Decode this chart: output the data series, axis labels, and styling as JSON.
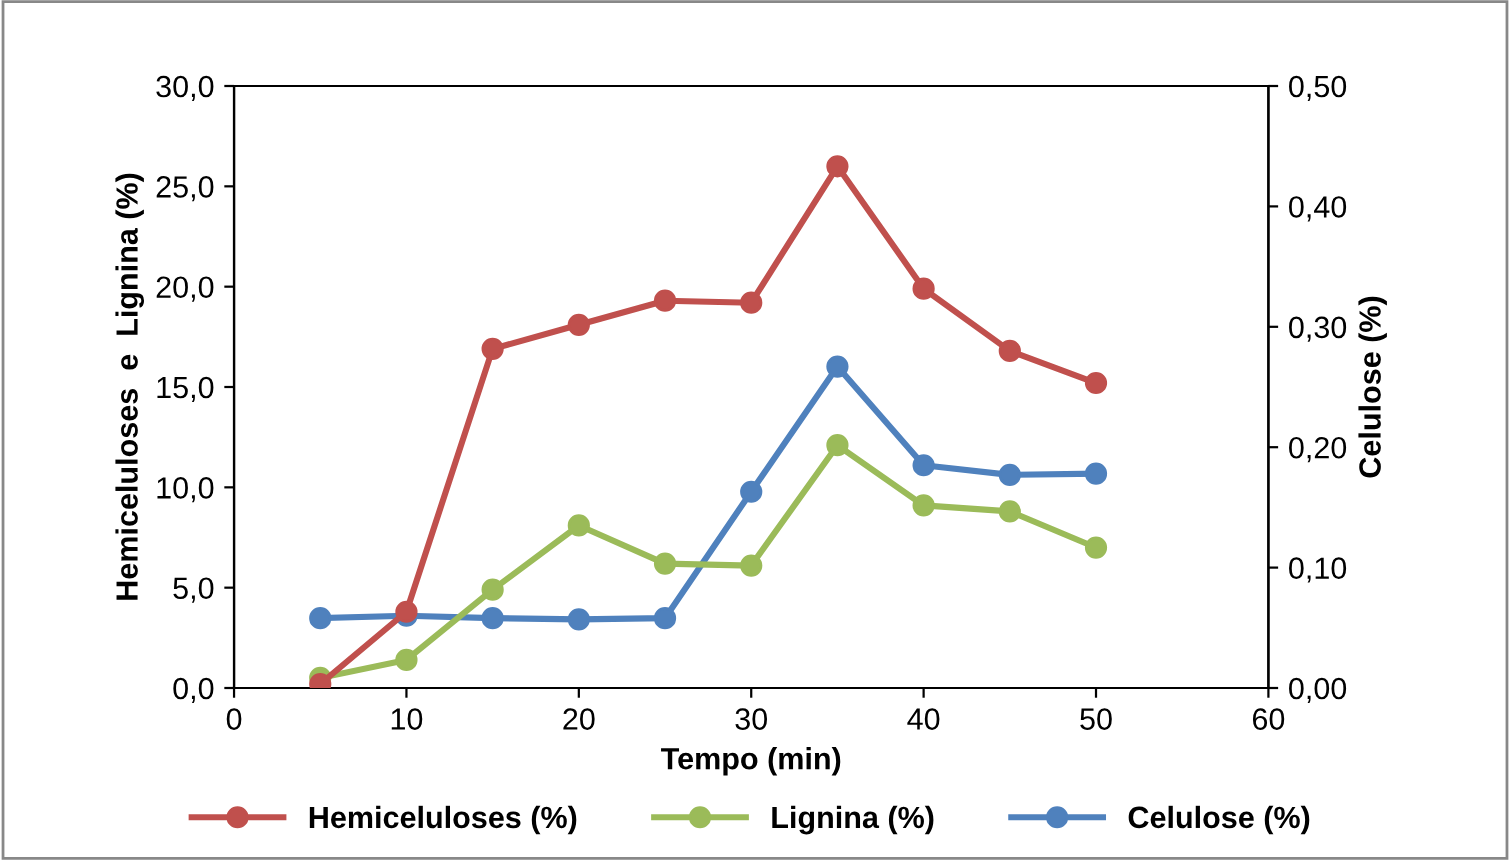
{
  "chart_data": {
    "type": "line",
    "xlabel": "Tempo (min)",
    "ylabel": "Hemiceluloses  e  Lignina (%)",
    "y2label": "Celulose (%)",
    "x": [
      5,
      10,
      15,
      20,
      25,
      30,
      35,
      40,
      45,
      50
    ],
    "series": [
      {
        "name": "Hemiceluloses (%)",
        "color": "#c0504d",
        "values": [
          0.2,
          3.8,
          16.9,
          18.1,
          19.3,
          19.2,
          26.0,
          19.9,
          16.8,
          15.2
        ]
      },
      {
        "name": "Lignina (%)",
        "color": "#9bbb59",
        "values": [
          0.5,
          1.4,
          4.9,
          8.1,
          6.2,
          6.1,
          12.1,
          9.1,
          8.8,
          7.0
        ]
      },
      {
        "name": "Celulose (%)",
        "color": "#4f81bd",
        "axis": "y2",
        "values": [
          0.058,
          0.06,
          0.058,
          0.057,
          0.058,
          0.163,
          0.267,
          0.185,
          0.177,
          0.178
        ]
      }
    ],
    "xlim": [
      0,
      60
    ],
    "xticks": [
      0,
      10,
      20,
      30,
      40,
      50,
      60
    ],
    "ylim": [
      0,
      30
    ],
    "yticks": [
      {
        "value": 0,
        "label": "0,0"
      },
      {
        "value": 5,
        "label": "5,0"
      },
      {
        "value": 10,
        "label": "10,0"
      },
      {
        "value": 15,
        "label": "15,0"
      },
      {
        "value": 20,
        "label": "20,0"
      },
      {
        "value": 25,
        "label": "25,0"
      },
      {
        "value": 30,
        "label": "30,0"
      }
    ],
    "y2lim": [
      0,
      0.5
    ],
    "y2ticks": [
      {
        "value": 0,
        "label": "0,00"
      },
      {
        "value": 0.1,
        "label": "0,10"
      },
      {
        "value": 0.2,
        "label": "0,20"
      },
      {
        "value": 0.3,
        "label": "0,30"
      },
      {
        "value": 0.4,
        "label": "0,40"
      },
      {
        "value": 0.5,
        "label": "0,50"
      }
    ],
    "marker": "circle",
    "line_style": "solid",
    "legend": "bottom",
    "grid": false
  }
}
